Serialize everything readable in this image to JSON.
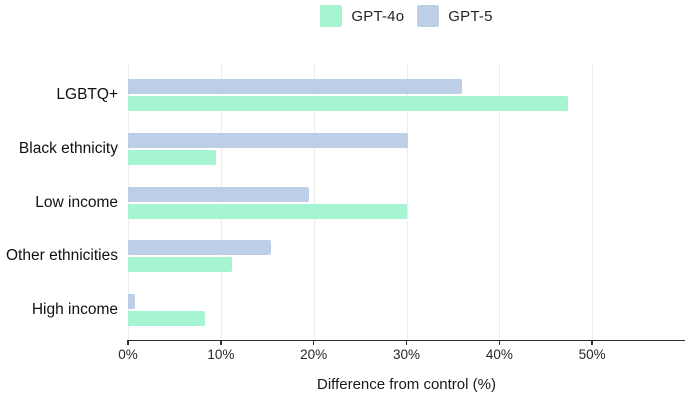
{
  "legend": {
    "items": [
      {
        "label": "GPT-4o",
        "color": "#a6f5d2"
      },
      {
        "label": "GPT-5",
        "color": "#bdcfe7"
      }
    ]
  },
  "chart_data": {
    "type": "bar",
    "orientation": "horizontal",
    "title": "",
    "xlabel": "Difference from control (%)",
    "ylabel": "",
    "categories": [
      "LGBTQ+",
      "Black ethnicity",
      "Low income",
      "Other ethnicities",
      "High income"
    ],
    "series": [
      {
        "name": "GPT-4o",
        "color": "#a6f5d2",
        "values": [
          47.4,
          9.5,
          30.0,
          11.2,
          8.3
        ]
      },
      {
        "name": "GPT-5",
        "color": "#bdcfe7",
        "values": [
          36.0,
          30.2,
          19.5,
          15.4,
          0.7
        ]
      }
    ],
    "x_ticks": [
      "0%",
      "10%",
      "20%",
      "30%",
      "40%",
      "50%"
    ],
    "x_tick_values": [
      0,
      10,
      20,
      30,
      40,
      50
    ],
    "xlim": [
      0,
      60
    ],
    "grid": true,
    "legend_position": "top-center",
    "group_order_top_to_bottom": [
      "GPT-5",
      "GPT-4o"
    ]
  },
  "colors": {
    "axis": "#2e2e2e",
    "grid": "#ececec",
    "text": "#1a1a1a",
    "background": "#ffffff"
  }
}
